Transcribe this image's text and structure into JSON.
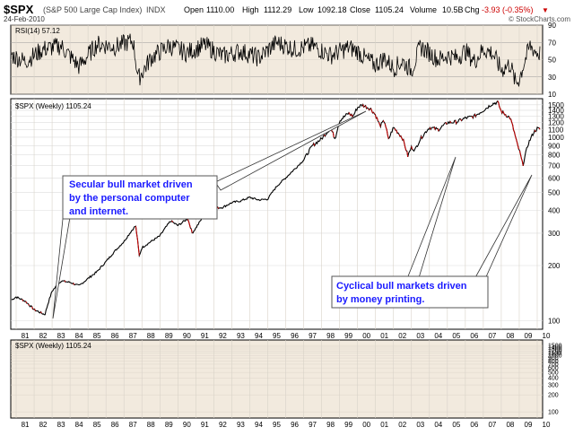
{
  "header": {
    "symbol": "$SPX",
    "name": "(S&P 500 Large Cap Index)",
    "exchange": "INDX",
    "date": "24-Feb-2010",
    "open_label": "Open",
    "open": "1110.00",
    "high_label": "High",
    "high": "1112.29",
    "low_label": "Low",
    "low": "1092.18",
    "close_label": "Close",
    "close": "1105.24",
    "volume_label": "Volume",
    "volume": "10.5B",
    "chg_label": "Chg",
    "chg": "-3.93 (-0.35%)",
    "chg_arrow": "▼",
    "watermark": "© StockCharts.com"
  },
  "rsi_panel": {
    "label": "RSI(14) 57.12",
    "ticks": [
      10,
      30,
      50,
      70,
      90
    ],
    "ylim": [
      10,
      90
    ],
    "overbought": 70,
    "oversold": 30
  },
  "price_panel": {
    "label": "$SPX (Weekly) 1105.24",
    "ticks": [
      100,
      200,
      300,
      400,
      500,
      600,
      700,
      800,
      900,
      1000,
      1100,
      1200,
      1300,
      1400,
      1500
    ]
  },
  "volume_panel": {
    "label": "$SPX (Weekly) 1105.24",
    "ticks": [
      100,
      200,
      300,
      400,
      500,
      600,
      700,
      800,
      900,
      1000,
      1100,
      1200,
      1300,
      1400,
      1500
    ]
  },
  "x_axis": {
    "ticks": [
      "81",
      "82",
      "83",
      "84",
      "85",
      "86",
      "87",
      "88",
      "89",
      "90",
      "91",
      "92",
      "93",
      "94",
      "95",
      "96",
      "97",
      "98",
      "99",
      "00",
      "01",
      "02",
      "03",
      "04",
      "05",
      "06",
      "07",
      "08",
      "09",
      "10"
    ]
  },
  "annotations": [
    {
      "id": "secular",
      "lines": [
        "Secular bull market driven",
        "by the personal computer",
        "and internet."
      ]
    },
    {
      "id": "cyclical",
      "lines": [
        "Cyclical bull markets driven",
        "by money printing."
      ]
    }
  ],
  "chart_data": {
    "type": "line",
    "ylim": [
      90,
      1620
    ],
    "series": [
      {
        "x": [
          1980.75,
          1981.0,
          1981.5,
          1982.0,
          1982.6,
          1983.0,
          1983.5,
          1984.0,
          1984.5,
          1985.0,
          1985.5,
          1986.0,
          1986.5,
          1987.0,
          1987.65,
          1987.85,
          1988.0,
          1988.5,
          1989.0,
          1989.6,
          1990.0,
          1990.55,
          1990.8,
          1991.0,
          1991.5,
          1992.0,
          1992.5,
          1993.0,
          1993.5,
          1994.0,
          1994.5,
          1995.0,
          1995.5,
          1996.0,
          1996.5,
          1997.0,
          1997.5,
          1998.0,
          1998.5,
          1998.75,
          1999.0,
          1999.5,
          1999.75,
          2000.0,
          2000.25,
          2000.5,
          2000.75,
          2001.0,
          2001.25,
          2001.5,
          2001.72,
          2002.0,
          2002.5,
          2002.8,
          2003.0,
          2003.2,
          2003.5,
          2004.0,
          2004.5,
          2005.0,
          2005.5,
          2006.0,
          2006.5,
          2007.0,
          2007.5,
          2007.8,
          2008.0,
          2008.5,
          2008.9,
          2009.0,
          2009.2,
          2009.5,
          2009.8,
          2010.0,
          2010.15
        ],
        "values": [
          130,
          135,
          128,
          115,
          108,
          145,
          165,
          162,
          155,
          170,
          185,
          210,
          240,
          270,
          330,
          225,
          250,
          270,
          290,
          350,
          330,
          360,
          300,
          320,
          380,
          410,
          415,
          440,
          450,
          470,
          455,
          460,
          540,
          600,
          670,
          750,
          900,
          980,
          1120,
          980,
          1230,
          1350,
          1300,
          1450,
          1500,
          1460,
          1420,
          1320,
          1150,
          1230,
          965,
          1130,
          990,
          790,
          880,
          850,
          980,
          1130,
          1100,
          1200,
          1210,
          1270,
          1300,
          1400,
          1520,
          1550,
          1380,
          1270,
          900,
          850,
          700,
          920,
          1060,
          1115,
          1105
        ]
      },
      {
        "x": [
          1980.75,
          1981.5,
          1982.5,
          1983.5,
          1984.5,
          1985.5,
          1986.5,
          1987.5,
          1987.8,
          1988.5,
          1989.5,
          1990.5,
          1991.5,
          1992.5,
          1993.5,
          1994.5,
          1995.5,
          1996.5,
          1997.5,
          1998.5,
          1999.5,
          2000.0,
          2000.5,
          2001.0,
          2001.5,
          2002.0,
          2002.5,
          2003.0,
          2003.5,
          2004.0,
          2004.5,
          2005.0,
          2005.5,
          2006.0,
          2006.5,
          2007.0,
          2007.5,
          2008.0,
          2008.5,
          2008.8,
          2009.0,
          2009.3,
          2009.6,
          2010.0,
          2010.15
        ],
        "values": [
          55,
          48,
          62,
          66,
          42,
          68,
          65,
          72,
          28,
          52,
          66,
          58,
          67,
          54,
          60,
          52,
          70,
          62,
          66,
          55,
          64,
          60,
          50,
          44,
          52,
          40,
          48,
          38,
          65,
          58,
          50,
          55,
          52,
          60,
          48,
          62,
          58,
          38,
          45,
          22,
          28,
          48,
          66,
          58,
          57
        ]
      }
    ]
  }
}
